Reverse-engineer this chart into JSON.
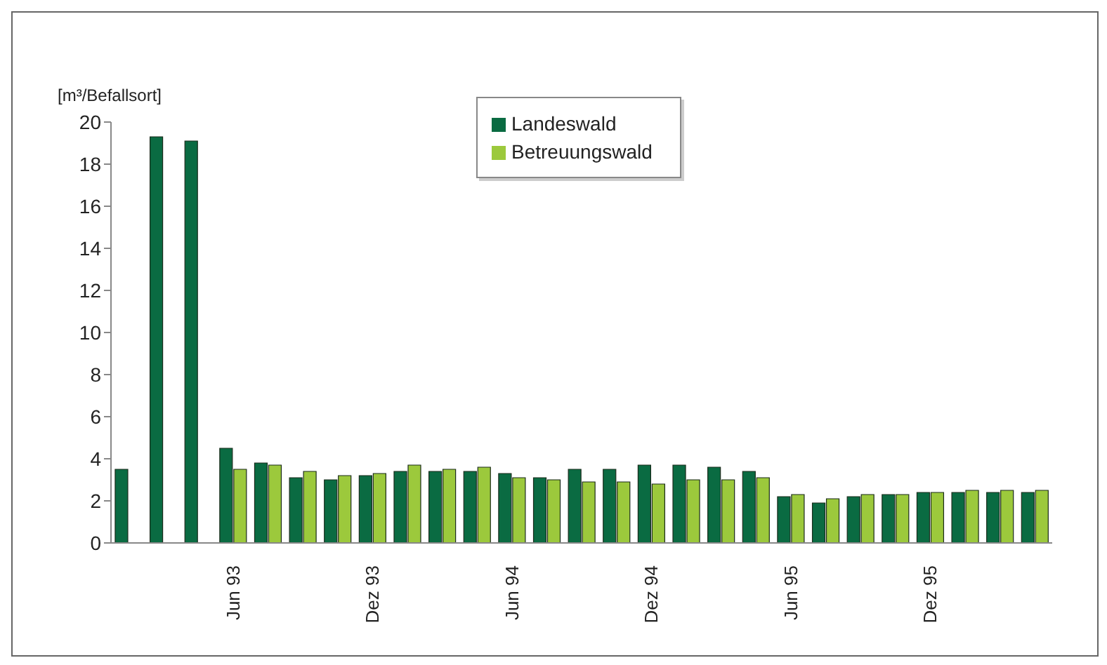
{
  "chart_data": {
    "type": "bar",
    "ylabel": "[m³/Befallsort]",
    "categories": [
      null,
      null,
      null,
      "Jun 93",
      null,
      null,
      null,
      "Dez 93",
      null,
      null,
      null,
      "Jun 94",
      null,
      null,
      null,
      "Dez 94",
      null,
      null,
      null,
      "Jun 95",
      null,
      null,
      null,
      "Dez 95",
      null,
      null,
      null
    ],
    "series": [
      {
        "name": "Landeswald",
        "color": "#0a6b42",
        "values": [
          3.5,
          19.3,
          19.1,
          4.5,
          3.8,
          3.1,
          3.0,
          3.2,
          3.4,
          3.4,
          3.4,
          3.3,
          3.1,
          3.5,
          3.5,
          3.7,
          3.7,
          3.6,
          3.4,
          2.2,
          1.9,
          2.2,
          2.3,
          2.4,
          2.4,
          2.4,
          2.4
        ]
      },
      {
        "name": "Betreuungswald",
        "color": "#9cc93c",
        "values": [
          null,
          null,
          null,
          3.5,
          3.7,
          3.4,
          3.2,
          3.3,
          3.7,
          3.5,
          3.6,
          3.1,
          3.0,
          2.9,
          2.9,
          2.8,
          3.0,
          3.0,
          3.1,
          2.3,
          2.1,
          2.3,
          2.3,
          2.4,
          2.5,
          2.5,
          2.5
        ]
      }
    ],
    "ylim": [
      0,
      20
    ],
    "yticks": [
      0,
      2,
      4,
      6,
      8,
      10,
      12,
      14,
      16,
      18,
      20
    ],
    "grid": false,
    "legend": "top"
  }
}
